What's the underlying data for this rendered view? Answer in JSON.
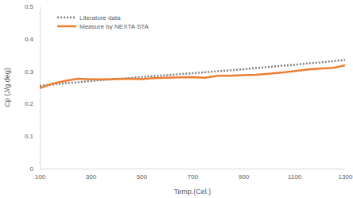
{
  "chart_data": {
    "type": "line",
    "x_label": "Temp.(Cel.)",
    "y_label": "Cp (J/g.deg)",
    "x": [
      100,
      150,
      200,
      250,
      300,
      350,
      400,
      450,
      500,
      550,
      600,
      650,
      700,
      750,
      800,
      850,
      900,
      950,
      1000,
      1050,
      1100,
      1150,
      1200,
      1250,
      1300
    ],
    "series": [
      {
        "name": "Literature data",
        "color": "#7f7f7f",
        "line_style": "dotted",
        "values": [
          0.255,
          0.259,
          0.263,
          0.266,
          0.27,
          0.273,
          0.276,
          0.279,
          0.282,
          0.285,
          0.288,
          0.291,
          0.294,
          0.297,
          0.3,
          0.303,
          0.306,
          0.31,
          0.313,
          0.317,
          0.32,
          0.324,
          0.327,
          0.331,
          0.335
        ]
      },
      {
        "name": "Measure by NEXTA STA",
        "color": "#ed7d31",
        "line_style": "solid",
        "values": [
          0.248,
          0.262,
          0.27,
          0.277,
          0.275,
          0.275,
          0.276,
          0.277,
          0.276,
          0.279,
          0.28,
          0.281,
          0.282,
          0.28,
          0.286,
          0.286,
          0.288,
          0.289,
          0.292,
          0.296,
          0.3,
          0.305,
          0.308,
          0.31,
          0.318
        ]
      }
    ],
    "xlim": [
      100,
      1300
    ],
    "xticks": [
      100,
      300,
      500,
      700,
      900,
      1100,
      1300
    ],
    "ylim": [
      0,
      0.5
    ],
    "yticks": [
      0,
      0.1,
      0.2,
      0.3,
      0.4,
      0.5
    ],
    "grid": false,
    "legend": "top-left"
  }
}
